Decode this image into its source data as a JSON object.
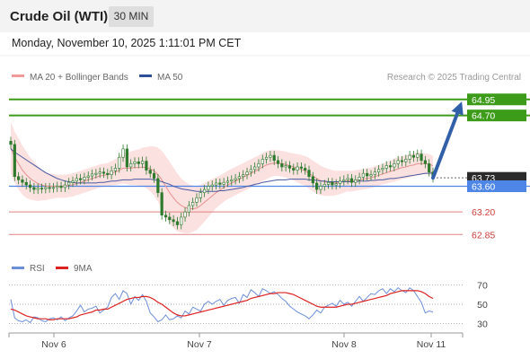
{
  "header": {
    "instrument": "Crude Oil (WTI)",
    "interval": "30 MIN"
  },
  "datetime": "Monday, November 10, 2025 1:11:01 PM CET",
  "legend_top": {
    "item1": "MA 20 + Bollinger Bands",
    "item2": "MA 50",
    "credit": "Research © 2025 Trading Central"
  },
  "legend_bottom": {
    "item1": "RSI",
    "item2": "9MA"
  },
  "colors": {
    "candle": "#2d7a2d",
    "ma20": "#e89090",
    "ma50": "#4a5aa0",
    "band_fill": "#fcdcdc",
    "resistance": "#3d9b1a",
    "support": "#e08080",
    "pivot": "#4e86e8",
    "current": "#2b2b2b",
    "arrow": "#3260a8",
    "rsi": "#6c8fd8",
    "rsi_ma": "#dd2222"
  },
  "chart_data": {
    "type": "candlestick",
    "x_ticks": [
      "Nov 6",
      "Nov 7",
      "Nov 8",
      "Nov 11"
    ],
    "ylim": [
      62.7,
      65.1
    ],
    "levels": [
      {
        "value": 64.95,
        "label": "64.95",
        "kind": "resistance"
      },
      {
        "value": 64.7,
        "label": "64.70",
        "kind": "resistance"
      },
      {
        "value": 63.73,
        "label": "63.73",
        "kind": "current"
      },
      {
        "value": 63.6,
        "label": "63.60",
        "kind": "pivot"
      },
      {
        "value": 63.2,
        "label": "63.20",
        "kind": "support"
      },
      {
        "value": 62.85,
        "label": "62.85",
        "kind": "support"
      }
    ],
    "close": [
      64.25,
      63.75,
      63.7,
      63.66,
      63.62,
      63.58,
      63.55,
      63.57,
      63.56,
      63.58,
      63.57,
      63.58,
      63.6,
      63.58,
      63.62,
      63.66,
      63.68,
      63.72,
      63.7,
      63.74,
      63.76,
      63.79,
      63.8,
      63.82,
      63.8,
      63.78,
      63.84,
      63.88,
      64.05,
      64.18,
      63.9,
      63.95,
      63.98,
      63.95,
      63.99,
      63.85,
      63.8,
      63.72,
      63.5,
      63.15,
      63.12,
      63.08,
      63.05,
      63.0,
      63.12,
      63.2,
      63.3,
      63.35,
      63.42,
      63.5,
      63.55,
      63.6,
      63.62,
      63.65,
      63.63,
      63.66,
      63.68,
      63.7,
      63.72,
      63.75,
      63.78,
      63.82,
      63.86,
      63.9,
      63.95,
      64.02,
      64.05,
      64.08,
      64.0,
      63.95,
      63.9,
      63.92,
      63.88,
      63.85,
      63.9,
      63.88,
      63.85,
      63.75,
      63.65,
      63.55,
      63.6,
      63.63,
      63.66,
      63.62,
      63.64,
      63.68,
      63.7,
      63.72,
      63.66,
      63.7,
      63.74,
      63.8,
      63.76,
      63.78,
      63.82,
      63.86,
      63.88,
      63.92,
      63.9,
      63.95,
      64.0,
      63.98,
      64.02,
      64.08,
      64.05,
      64.1,
      64.0,
      63.95,
      63.82,
      63.73
    ],
    "ma20": [
      64.2,
      64.05,
      63.95,
      63.85,
      63.78,
      63.72,
      63.68,
      63.64,
      63.62,
      63.6,
      63.6,
      63.6,
      63.6,
      63.6,
      63.6,
      63.61,
      63.62,
      63.64,
      63.66,
      63.68,
      63.7,
      63.72,
      63.74,
      63.76,
      63.77,
      63.78,
      63.8,
      63.82,
      63.85,
      63.88,
      63.88,
      63.88,
      63.89,
      63.89,
      63.9,
      63.89,
      63.87,
      63.84,
      63.78,
      63.7,
      63.6,
      63.5,
      63.42,
      63.35,
      63.3,
      63.27,
      63.25,
      63.25,
      63.26,
      63.3,
      63.35,
      63.4,
      63.45,
      63.5,
      63.54,
      63.58,
      63.62,
      63.65,
      63.68,
      63.71,
      63.74,
      63.77,
      63.8,
      63.83,
      63.86,
      63.9,
      63.93,
      63.95,
      63.96,
      63.96,
      63.95,
      63.94,
      63.92,
      63.9,
      63.88,
      63.86,
      63.84,
      63.8,
      63.76,
      63.72,
      63.69,
      63.67,
      63.66,
      63.65,
      63.65,
      63.66,
      63.67,
      63.68,
      63.68,
      63.69,
      63.7,
      63.71,
      63.72,
      63.73,
      63.75,
      63.77,
      63.79,
      63.81,
      63.83,
      63.85,
      63.87,
      63.89,
      63.9,
      63.92,
      63.93,
      63.95,
      63.95,
      63.95,
      63.94,
      63.92
    ],
    "ma50": [
      64.18,
      64.13,
      64.09,
      64.05,
      64.01,
      63.97,
      63.93,
      63.89,
      63.85,
      63.81,
      63.78,
      63.75,
      63.72,
      63.7,
      63.68,
      63.67,
      63.66,
      63.65,
      63.65,
      63.65,
      63.65,
      63.65,
      63.65,
      63.66,
      63.66,
      63.67,
      63.68,
      63.68,
      63.69,
      63.7,
      63.7,
      63.7,
      63.71,
      63.71,
      63.71,
      63.71,
      63.71,
      63.7,
      63.69,
      63.67,
      63.65,
      63.63,
      63.6,
      63.58,
      63.56,
      63.55,
      63.54,
      63.53,
      63.52,
      63.52,
      63.52,
      63.52,
      63.52,
      63.52,
      63.53,
      63.53,
      63.54,
      63.55,
      63.56,
      63.57,
      63.58,
      63.6,
      63.61,
      63.63,
      63.64,
      63.66,
      63.67,
      63.68,
      63.69,
      63.7,
      63.7,
      63.7,
      63.71,
      63.71,
      63.71,
      63.71,
      63.71,
      63.7,
      63.7,
      63.69,
      63.68,
      63.68,
      63.67,
      63.67,
      63.67,
      63.67,
      63.67,
      63.67,
      63.67,
      63.67,
      63.68,
      63.68,
      63.68,
      63.69,
      63.69,
      63.7,
      63.7,
      63.71,
      63.72,
      63.72,
      63.73,
      63.74,
      63.75,
      63.76,
      63.77,
      63.78,
      63.79,
      63.8,
      63.8,
      63.81
    ],
    "bb_width": [
      0.4,
      0.4,
      0.4,
      0.38,
      0.36,
      0.33,
      0.3,
      0.27,
      0.24,
      0.22,
      0.2,
      0.19,
      0.18,
      0.18,
      0.18,
      0.18,
      0.18,
      0.18,
      0.18,
      0.18,
      0.18,
      0.18,
      0.18,
      0.18,
      0.18,
      0.18,
      0.19,
      0.2,
      0.22,
      0.24,
      0.25,
      0.26,
      0.27,
      0.28,
      0.3,
      0.32,
      0.35,
      0.38,
      0.42,
      0.45,
      0.47,
      0.48,
      0.47,
      0.45,
      0.42,
      0.4,
      0.38,
      0.36,
      0.34,
      0.32,
      0.3,
      0.28,
      0.26,
      0.24,
      0.23,
      0.22,
      0.22,
      0.22,
      0.22,
      0.22,
      0.22,
      0.22,
      0.22,
      0.22,
      0.22,
      0.22,
      0.22,
      0.21,
      0.2,
      0.2,
      0.2,
      0.2,
      0.2,
      0.21,
      0.22,
      0.23,
      0.23,
      0.24,
      0.24,
      0.24,
      0.23,
      0.22,
      0.21,
      0.2,
      0.19,
      0.18,
      0.17,
      0.16,
      0.16,
      0.16,
      0.16,
      0.16,
      0.16,
      0.16,
      0.16,
      0.16,
      0.16,
      0.17,
      0.17,
      0.18,
      0.18,
      0.18,
      0.18,
      0.18,
      0.18,
      0.18,
      0.17,
      0.16,
      0.16,
      0.15
    ],
    "forecast": {
      "from": 63.73,
      "to": 64.95
    },
    "rsi": {
      "ticks": [
        70,
        50,
        30
      ],
      "ylim": [
        25,
        75
      ],
      "values": [
        55,
        36,
        33,
        32,
        34,
        31,
        37,
        36,
        33,
        32,
        35,
        36,
        34,
        37,
        33,
        36,
        38,
        43,
        49,
        42,
        45,
        46,
        48,
        41,
        44,
        47,
        57,
        61,
        55,
        64,
        61,
        50,
        58,
        54,
        60,
        53,
        41,
        37,
        32,
        34,
        39,
        34,
        35,
        38,
        36,
        43,
        40,
        47,
        45,
        43,
        50,
        53,
        50,
        53,
        55,
        49,
        54,
        56,
        57,
        51,
        60,
        57,
        65,
        62,
        58,
        66,
        64,
        61,
        63,
        60,
        56,
        53,
        48,
        45,
        42,
        40,
        38,
        35,
        39,
        44,
        41,
        47,
        49,
        51,
        48,
        54,
        50,
        52,
        48,
        53,
        58,
        53,
        57,
        61,
        60,
        64,
        66,
        61,
        66,
        63,
        67,
        64,
        62,
        67,
        64,
        58,
        52,
        41,
        43,
        42
      ],
      "ma": [
        45,
        44,
        42,
        40,
        38,
        37,
        36,
        35,
        35,
        35,
        34,
        34,
        35,
        35,
        35,
        35,
        36,
        37,
        39,
        40,
        41,
        42,
        44,
        44,
        45,
        45,
        47,
        49,
        51,
        53,
        55,
        56,
        57,
        57,
        58,
        58,
        57,
        55,
        52,
        50,
        47,
        44,
        41,
        39,
        38,
        38,
        39,
        40,
        41,
        42,
        43,
        44,
        45,
        46,
        47,
        48,
        49,
        50,
        51,
        52,
        53,
        54,
        56,
        57,
        58,
        59,
        60,
        61,
        61,
        62,
        62,
        62,
        61,
        60,
        58,
        56,
        54,
        52,
        50,
        48,
        47,
        47,
        47,
        47,
        47,
        48,
        49,
        50,
        50,
        51,
        52,
        53,
        54,
        55,
        56,
        57,
        58,
        59,
        61,
        62,
        63,
        64,
        64,
        64,
        64,
        64,
        63,
        61,
        58,
        56
      ]
    }
  }
}
